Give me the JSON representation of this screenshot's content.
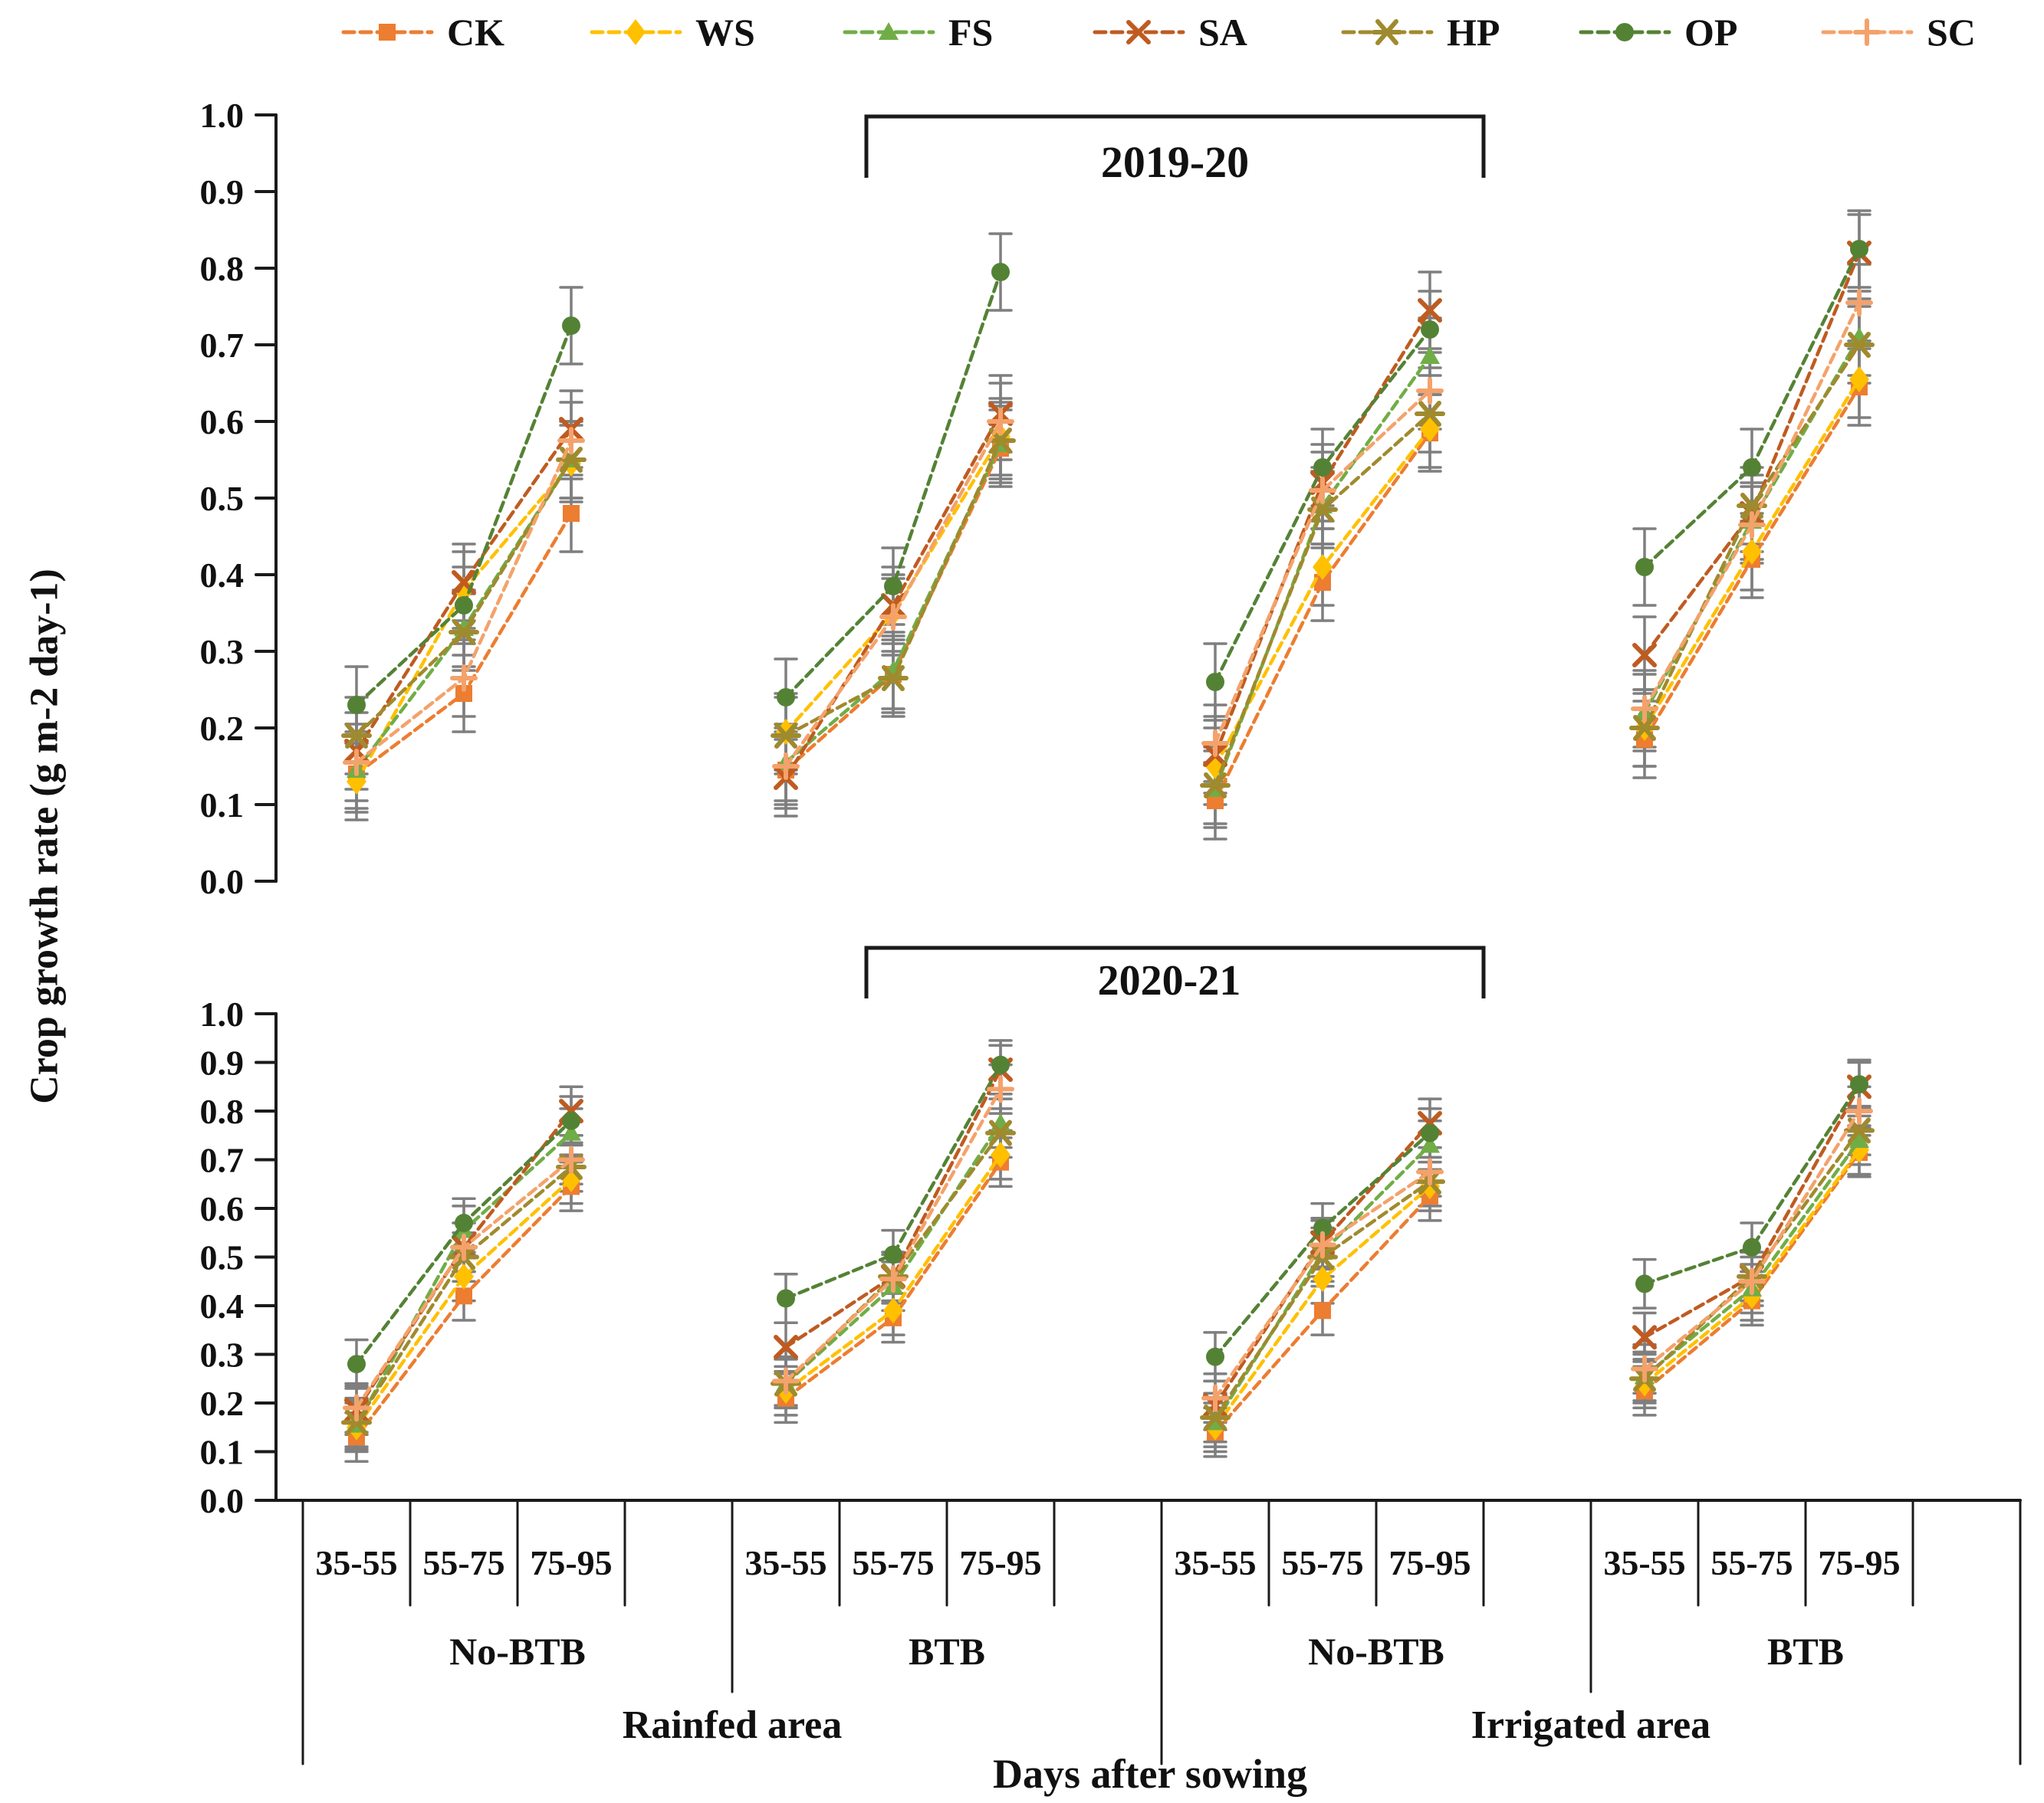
{
  "figure": {
    "y_axis_title": "Crop growth rate (g m-2 day-1)",
    "x_axis_title": "Days after sowing",
    "colors": {
      "axis": "#1a1a1a",
      "error_bar": "#7F7F7F",
      "background": "#ffffff"
    }
  },
  "legend": {
    "items": [
      "CK",
      "WS",
      "FS",
      "SA",
      "HP",
      "OP",
      "SC"
    ]
  },
  "chart_data": [
    {
      "type": "line",
      "title": "2019-20",
      "ylabel": "Crop growth rate (g m-2 day-1)",
      "xlabel": "Days after sowing",
      "ylim": [
        0.0,
        1.0
      ],
      "ytick_step": 0.1,
      "grid": false,
      "legend_position": "top",
      "error_bar_estimate": 0.05,
      "areas": [
        "Rainfed area",
        "Irrigated area"
      ],
      "intervals": [
        "35-55",
        "55-75",
        "75-95"
      ],
      "groups": [
        {
          "area": "Rainfed area",
          "btb": "No-BTB"
        },
        {
          "area": "Rainfed area",
          "btb": "BTB"
        },
        {
          "area": "Irrigated area",
          "btb": "No-BTB"
        },
        {
          "area": "Irrigated area",
          "btb": "BTB"
        }
      ],
      "categories": [
        "Rainfed No-BTB 35-55",
        "Rainfed No-BTB 55-75",
        "Rainfed No-BTB 75-95",
        "Rainfed BTB 35-55",
        "Rainfed BTB 55-75",
        "Rainfed BTB 75-95",
        "Irrigated No-BTB 35-55",
        "Irrigated No-BTB 55-75",
        "Irrigated No-BTB 75-95",
        "Irrigated BTB 35-55",
        "Irrigated BTB 55-75",
        "Irrigated BTB 75-95"
      ],
      "series": [
        {
          "name": "CK",
          "color": "#ED7D31",
          "marker": "square",
          "values": [
            0.14,
            0.245,
            0.48,
            0.145,
            0.27,
            0.565,
            0.105,
            0.39,
            0.585,
            0.185,
            0.42,
            0.645
          ]
        },
        {
          "name": "WS",
          "color": "#FFC000",
          "marker": "diamond",
          "values": [
            0.13,
            0.38,
            0.545,
            0.195,
            0.35,
            0.58,
            0.15,
            0.41,
            0.59,
            0.2,
            0.43,
            0.655
          ]
        },
        {
          "name": "FS",
          "color": "#70AD47",
          "marker": "triangle",
          "values": [
            0.145,
            0.33,
            0.55,
            0.155,
            0.275,
            0.57,
            0.12,
            0.49,
            0.685,
            0.22,
            0.47,
            0.71
          ]
        },
        {
          "name": "SA",
          "color": "#BF5B21",
          "marker": "x",
          "values": [
            0.17,
            0.39,
            0.59,
            0.135,
            0.36,
            0.61,
            0.165,
            0.52,
            0.745,
            0.295,
            0.48,
            0.82
          ]
        },
        {
          "name": "HP",
          "color": "#A08A2E",
          "marker": "asterisk",
          "values": [
            0.19,
            0.325,
            0.55,
            0.19,
            0.265,
            0.575,
            0.125,
            0.485,
            0.61,
            0.2,
            0.49,
            0.7
          ]
        },
        {
          "name": "OP",
          "color": "#548235",
          "marker": "circle",
          "values": [
            0.23,
            0.36,
            0.725,
            0.24,
            0.385,
            0.795,
            0.26,
            0.54,
            0.72,
            0.41,
            0.54,
            0.825
          ]
        },
        {
          "name": "SC",
          "color": "#F4A26B",
          "marker": "plus",
          "values": [
            0.155,
            0.265,
            0.575,
            0.15,
            0.345,
            0.6,
            0.18,
            0.51,
            0.64,
            0.225,
            0.465,
            0.755
          ]
        }
      ]
    },
    {
      "type": "line",
      "title": "2020-21",
      "ylabel": "Crop growth rate (g m-2 day-1)",
      "xlabel": "Days after sowing",
      "ylim": [
        0.0,
        1.0
      ],
      "ytick_step": 0.1,
      "grid": false,
      "legend_position": "top",
      "error_bar_estimate": 0.05,
      "areas": [
        "Rainfed area",
        "Irrigated area"
      ],
      "intervals": [
        "35-55",
        "55-75",
        "75-95"
      ],
      "groups": [
        {
          "area": "Rainfed area",
          "btb": "No-BTB"
        },
        {
          "area": "Rainfed area",
          "btb": "BTB"
        },
        {
          "area": "Irrigated area",
          "btb": "No-BTB"
        },
        {
          "area": "Irrigated area",
          "btb": "BTB"
        }
      ],
      "categories": [
        "Rainfed No-BTB 35-55",
        "Rainfed No-BTB 55-75",
        "Rainfed No-BTB 75-95",
        "Rainfed BTB 35-55",
        "Rainfed BTB 55-75",
        "Rainfed BTB 75-95",
        "Irrigated No-BTB 35-55",
        "Irrigated No-BTB 55-75",
        "Irrigated No-BTB 75-95",
        "Irrigated BTB 35-55",
        "Irrigated BTB 55-75",
        "Irrigated BTB 75-95"
      ],
      "series": [
        {
          "name": "CK",
          "color": "#ED7D31",
          "marker": "square",
          "values": [
            0.13,
            0.42,
            0.645,
            0.21,
            0.375,
            0.695,
            0.14,
            0.39,
            0.625,
            0.225,
            0.41,
            0.715
          ]
        },
        {
          "name": "WS",
          "color": "#FFC000",
          "marker": "diamond",
          "values": [
            0.15,
            0.46,
            0.66,
            0.225,
            0.39,
            0.71,
            0.15,
            0.455,
            0.645,
            0.24,
            0.42,
            0.72
          ]
        },
        {
          "name": "FS",
          "color": "#70AD47",
          "marker": "triangle",
          "values": [
            0.155,
            0.555,
            0.755,
            0.24,
            0.44,
            0.775,
            0.16,
            0.51,
            0.73,
            0.255,
            0.435,
            0.74
          ]
        },
        {
          "name": "SA",
          "color": "#BF5B21",
          "marker": "x",
          "values": [
            0.185,
            0.52,
            0.8,
            0.315,
            0.46,
            0.885,
            0.195,
            0.53,
            0.775,
            0.335,
            0.46,
            0.85
          ]
        },
        {
          "name": "HP",
          "color": "#A08A2E",
          "marker": "asterisk",
          "values": [
            0.16,
            0.5,
            0.685,
            0.24,
            0.46,
            0.755,
            0.17,
            0.5,
            0.655,
            0.25,
            0.46,
            0.76
          ]
        },
        {
          "name": "OP",
          "color": "#548235",
          "marker": "circle",
          "values": [
            0.28,
            0.57,
            0.78,
            0.415,
            0.505,
            0.895,
            0.295,
            0.56,
            0.755,
            0.445,
            0.52,
            0.855
          ]
        },
        {
          "name": "SC",
          "color": "#F4A26B",
          "marker": "plus",
          "values": [
            0.19,
            0.52,
            0.7,
            0.245,
            0.455,
            0.845,
            0.21,
            0.525,
            0.675,
            0.27,
            0.45,
            0.8
          ]
        }
      ]
    }
  ]
}
